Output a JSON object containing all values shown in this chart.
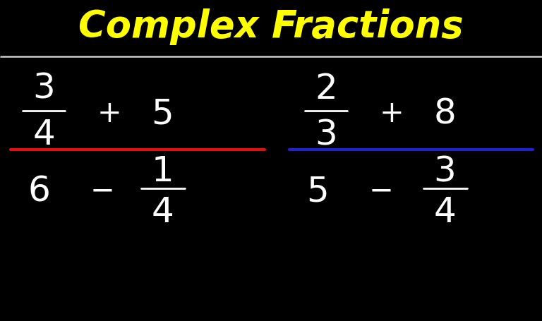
{
  "background_color": "#000000",
  "title": "Complex Fractions",
  "title_color": "#FFFF00",
  "title_fontsize": 38,
  "separator_color": "#CCCCCC",
  "separator_lw": 1.8,
  "text_color": "#FFFFFF",
  "red_color": "#DD1111",
  "blue_color": "#2222CC",
  "divider_lw": 3.0,
  "inner_line_lw": 2.0,
  "main_fontsize": 36,
  "small_fontsize": 36,
  "op_fontsize": 30
}
